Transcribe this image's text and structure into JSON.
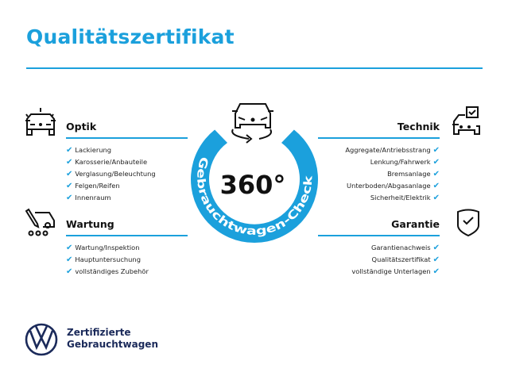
{
  "title": "Qualitätszertifikat",
  "badge": {
    "number": "360°",
    "arc_text": "Gebrauchtwagen-Check"
  },
  "sections": {
    "optik": {
      "heading": "Optik",
      "icon": "car-lights-icon",
      "items": [
        "Lackierung",
        "Karosserie/Anbauteile",
        "Verglasung/Beleuchtung",
        "Felgen/Reifen",
        "Innenraum"
      ]
    },
    "wartung": {
      "heading": "Wartung",
      "icon": "service-tool-icon",
      "items": [
        "Wartung/Inspektion",
        "Hauptuntersuchung",
        "vollständiges Zubehör"
      ]
    },
    "technik": {
      "heading": "Technik",
      "icon": "car-checklist-icon",
      "items": [
        "Aggregate/Antriebsstrang",
        "Lenkung/Fahrwerk",
        "Bremsanlage",
        "Unterboden/Abgasanlage",
        "Sicherheit/Elektrik"
      ]
    },
    "garantie": {
      "heading": "Garantie",
      "icon": "shield-check-icon",
      "items": [
        "Garantienachweis",
        "Qualitätszertifikat",
        "vollständige Unterlagen"
      ]
    }
  },
  "check_mark": "✔",
  "brand": {
    "line1": "Zertifizierte",
    "line2": "Gebrauchtwagen",
    "logo": "vw-logo"
  },
  "colors": {
    "accent": "#1ba0dc",
    "brand": "#1b2a5a"
  }
}
